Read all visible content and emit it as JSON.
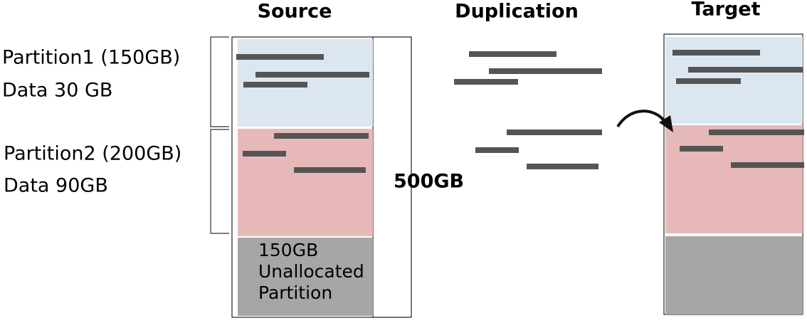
{
  "headers": {
    "source": "Source",
    "duplication": "Duplication",
    "target": "Target"
  },
  "partitions": [
    {
      "name": "Partition1 (150GB)",
      "data": "Data 30 GB"
    },
    {
      "name": "Partition2 (200GB)",
      "data": "Data 90GB"
    }
  ],
  "disk_size": "500GB",
  "unallocated": [
    "150GB",
    "Unallocated",
    "Partition"
  ]
}
